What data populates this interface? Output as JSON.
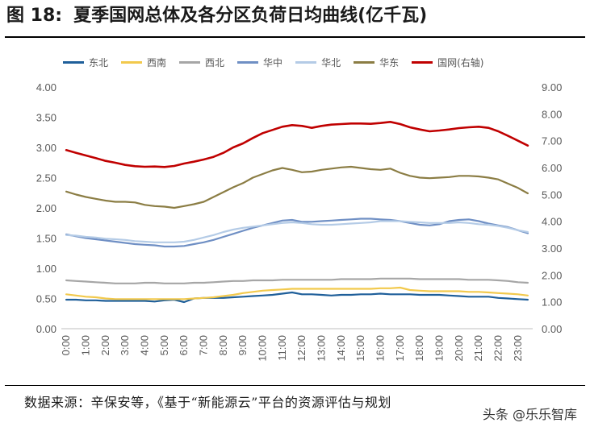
{
  "title": {
    "figure_no": "图 18:",
    "text": "夏季国网总体及各分区负荷日均曲线(亿千瓦)"
  },
  "source": "数据来源：辛保安等，《基于“新能源云”平台的资源评估与规划",
  "watermark": "头条 @乐乐智库",
  "chart_data": {
    "type": "line",
    "x": [
      "0:00",
      "0:30",
      "1:00",
      "1:30",
      "2:00",
      "2:30",
      "3:00",
      "3:30",
      "4:00",
      "4:30",
      "5:00",
      "5:30",
      "6:00",
      "6:30",
      "7:00",
      "7:30",
      "8:00",
      "8:30",
      "9:00",
      "9:30",
      "10:00",
      "10:30",
      "11:00",
      "11:30",
      "12:00",
      "12:30",
      "13:00",
      "13:30",
      "14:00",
      "14:30",
      "15:00",
      "15:30",
      "16:00",
      "16:30",
      "17:00",
      "17:30",
      "18:00",
      "18:30",
      "19:00",
      "19:30",
      "20:00",
      "20:30",
      "21:00",
      "21:30",
      "22:00",
      "22:30",
      "23:00",
      "23:30"
    ],
    "x_ticks": [
      "0:00",
      "1:00",
      "2:00",
      "3:00",
      "4:00",
      "5:00",
      "6:00",
      "7:00",
      "8:00",
      "9:00",
      "10:00",
      "11:00",
      "12:00",
      "13:00",
      "14:00",
      "15:00",
      "16:00",
      "17:00",
      "18:00",
      "19:00",
      "20:00",
      "21:00",
      "22:00",
      "23:00"
    ],
    "y_left": {
      "range": [
        0,
        4
      ],
      "ticks": [
        "0.00",
        "0.50",
        "1.00",
        "1.50",
        "2.00",
        "2.50",
        "3.00",
        "3.50",
        "4.00"
      ]
    },
    "y_right": {
      "range": [
        0,
        9
      ],
      "ticks": [
        "0.00",
        "1.00",
        "2.00",
        "3.00",
        "4.00",
        "5.00",
        "6.00",
        "7.00",
        "8.00",
        "9.00"
      ]
    },
    "legend_position": "top",
    "grid": false,
    "series": [
      {
        "name": "东北",
        "color": "#1f5f9a",
        "axis": "left",
        "values": [
          0.48,
          0.48,
          0.47,
          0.47,
          0.46,
          0.46,
          0.46,
          0.46,
          0.46,
          0.45,
          0.47,
          0.48,
          0.44,
          0.5,
          0.51,
          0.51,
          0.51,
          0.52,
          0.53,
          0.54,
          0.55,
          0.56,
          0.58,
          0.6,
          0.57,
          0.57,
          0.56,
          0.55,
          0.56,
          0.56,
          0.57,
          0.57,
          0.58,
          0.57,
          0.57,
          0.57,
          0.56,
          0.56,
          0.56,
          0.55,
          0.54,
          0.53,
          0.53,
          0.53,
          0.51,
          0.5,
          0.49,
          0.48
        ]
      },
      {
        "name": "西南",
        "color": "#f2c94c",
        "axis": "left",
        "values": [
          0.57,
          0.55,
          0.53,
          0.52,
          0.5,
          0.49,
          0.49,
          0.49,
          0.49,
          0.49,
          0.49,
          0.49,
          0.49,
          0.5,
          0.51,
          0.52,
          0.54,
          0.56,
          0.59,
          0.61,
          0.63,
          0.64,
          0.65,
          0.66,
          0.66,
          0.66,
          0.66,
          0.66,
          0.66,
          0.66,
          0.66,
          0.66,
          0.67,
          0.67,
          0.68,
          0.64,
          0.63,
          0.62,
          0.62,
          0.62,
          0.62,
          0.61,
          0.61,
          0.6,
          0.59,
          0.58,
          0.57,
          0.55
        ]
      },
      {
        "name": "西北",
        "color": "#a6a6a6",
        "axis": "left",
        "values": [
          0.8,
          0.79,
          0.78,
          0.77,
          0.76,
          0.75,
          0.75,
          0.75,
          0.76,
          0.76,
          0.75,
          0.75,
          0.75,
          0.76,
          0.76,
          0.77,
          0.78,
          0.79,
          0.79,
          0.8,
          0.8,
          0.8,
          0.81,
          0.81,
          0.81,
          0.81,
          0.81,
          0.81,
          0.82,
          0.82,
          0.82,
          0.82,
          0.83,
          0.83,
          0.83,
          0.83,
          0.82,
          0.82,
          0.82,
          0.82,
          0.82,
          0.81,
          0.81,
          0.81,
          0.8,
          0.79,
          0.77,
          0.76
        ]
      },
      {
        "name": "华中",
        "color": "#6f8fc4",
        "axis": "left",
        "values": [
          1.56,
          1.53,
          1.5,
          1.48,
          1.46,
          1.44,
          1.42,
          1.4,
          1.39,
          1.38,
          1.36,
          1.36,
          1.37,
          1.4,
          1.43,
          1.47,
          1.52,
          1.57,
          1.62,
          1.67,
          1.71,
          1.75,
          1.79,
          1.8,
          1.77,
          1.77,
          1.78,
          1.79,
          1.8,
          1.81,
          1.82,
          1.82,
          1.81,
          1.8,
          1.78,
          1.75,
          1.72,
          1.71,
          1.73,
          1.78,
          1.8,
          1.81,
          1.78,
          1.74,
          1.71,
          1.68,
          1.63,
          1.58
        ]
      },
      {
        "name": "华北",
        "color": "#b4cbe6",
        "axis": "left",
        "values": [
          1.55,
          1.54,
          1.52,
          1.51,
          1.49,
          1.48,
          1.47,
          1.45,
          1.44,
          1.43,
          1.43,
          1.43,
          1.44,
          1.47,
          1.51,
          1.55,
          1.6,
          1.64,
          1.67,
          1.69,
          1.71,
          1.73,
          1.75,
          1.76,
          1.75,
          1.73,
          1.72,
          1.72,
          1.73,
          1.74,
          1.75,
          1.76,
          1.78,
          1.78,
          1.78,
          1.77,
          1.76,
          1.75,
          1.75,
          1.75,
          1.76,
          1.75,
          1.73,
          1.72,
          1.7,
          1.67,
          1.63,
          1.6
        ]
      },
      {
        "name": "华东",
        "color": "#8b7d44",
        "axis": "left",
        "values": [
          2.27,
          2.22,
          2.18,
          2.15,
          2.12,
          2.1,
          2.1,
          2.09,
          2.05,
          2.03,
          2.02,
          2.0,
          2.03,
          2.06,
          2.1,
          2.18,
          2.26,
          2.34,
          2.41,
          2.5,
          2.56,
          2.62,
          2.66,
          2.63,
          2.59,
          2.6,
          2.63,
          2.65,
          2.67,
          2.68,
          2.66,
          2.64,
          2.63,
          2.65,
          2.58,
          2.53,
          2.5,
          2.49,
          2.5,
          2.51,
          2.53,
          2.53,
          2.52,
          2.5,
          2.47,
          2.4,
          2.33,
          2.24
        ]
      },
      {
        "name": "国网(右轴)",
        "color": "#c00000",
        "axis": "right",
        "values": [
          6.65,
          6.55,
          6.45,
          6.35,
          6.25,
          6.18,
          6.1,
          6.05,
          6.03,
          6.04,
          6.02,
          6.06,
          6.15,
          6.22,
          6.3,
          6.4,
          6.55,
          6.75,
          6.9,
          7.1,
          7.28,
          7.4,
          7.52,
          7.58,
          7.55,
          7.48,
          7.55,
          7.6,
          7.62,
          7.64,
          7.64,
          7.63,
          7.66,
          7.7,
          7.62,
          7.5,
          7.42,
          7.35,
          7.38,
          7.42,
          7.47,
          7.5,
          7.52,
          7.48,
          7.35,
          7.18,
          7.0,
          6.82
        ]
      }
    ]
  }
}
